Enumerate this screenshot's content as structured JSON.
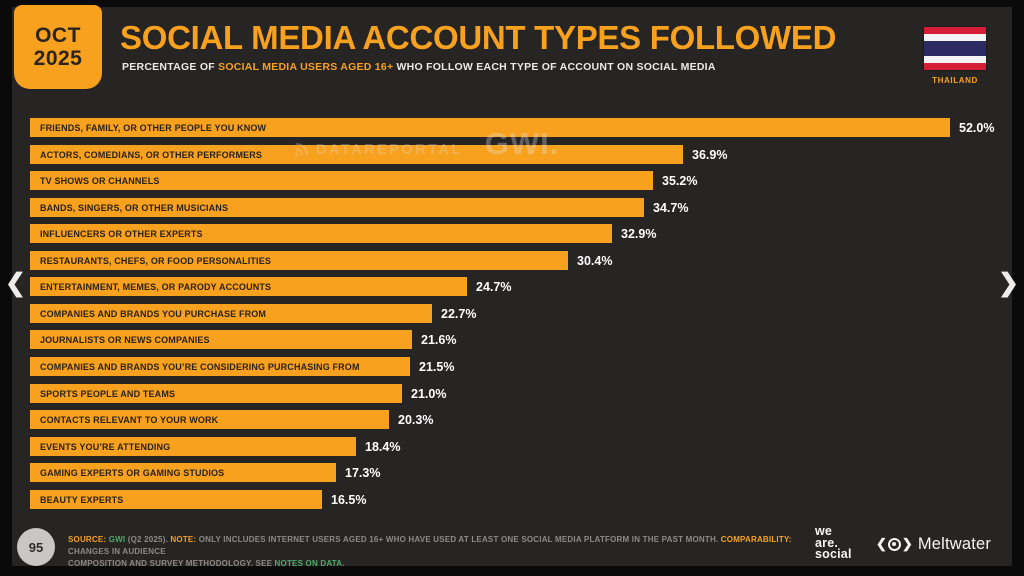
{
  "header": {
    "date_line1": "OCT",
    "date_line2": "2025",
    "title": "SOCIAL MEDIA ACCOUNT TYPES FOLLOWED",
    "subtitle_prefix": "PERCENTAGE OF ",
    "subtitle_highlight": "SOCIAL MEDIA USERS AGED 16+",
    "subtitle_suffix": " WHO FOLLOW EACH TYPE OF ACCOUNT ON SOCIAL MEDIA",
    "country": "THAILAND"
  },
  "watermark": {
    "brand1": "DATAREPORTAL",
    "brand2": "GWI."
  },
  "nav": {
    "prev": "❮",
    "next": "❯"
  },
  "chart_data": {
    "type": "bar",
    "orientation": "horizontal",
    "title": "SOCIAL MEDIA ACCOUNT TYPES FOLLOWED",
    "xlabel": "",
    "ylabel": "",
    "xlim": [
      0,
      56
    ],
    "grid": false,
    "bar_color": "#F7A11E",
    "categories": [
      "FRIENDS, FAMILY, OR OTHER PEOPLE YOU KNOW",
      "ACTORS, COMEDIANS, OR OTHER PERFORMERS",
      "TV SHOWS OR CHANNELS",
      "BANDS, SINGERS, OR OTHER MUSICIANS",
      "INFLUENCERS OR OTHER EXPERTS",
      "RESTAURANTS, CHEFS, OR FOOD PERSONALITIES",
      "ENTERTAINMENT, MEMES, OR PARODY ACCOUNTS",
      "COMPANIES AND BRANDS YOU PURCHASE FROM",
      "JOURNALISTS OR NEWS COMPANIES",
      "COMPANIES AND BRANDS YOU’RE CONSIDERING PURCHASING FROM",
      "SPORTS PEOPLE AND TEAMS",
      "CONTACTS RELEVANT TO YOUR WORK",
      "EVENTS YOU’RE ATTENDING",
      "GAMING EXPERTS OR GAMING STUDIOS",
      "BEAUTY EXPERTS"
    ],
    "values": [
      52.0,
      36.9,
      35.2,
      34.7,
      32.9,
      30.4,
      24.7,
      22.7,
      21.6,
      21.5,
      21.0,
      20.3,
      18.4,
      17.3,
      16.5
    ],
    "value_labels": [
      "52.0%",
      "36.9%",
      "35.2%",
      "34.7%",
      "32.9%",
      "30.4%",
      "24.7%",
      "22.7%",
      "21.6%",
      "21.5%",
      "21.0%",
      "20.3%",
      "18.4%",
      "17.3%",
      "16.5%"
    ]
  },
  "footer": {
    "page_number": "95",
    "line1": {
      "source_label": "SOURCE:",
      "source_link": " GWI",
      "source_tail": " (Q2 2025). ",
      "note_label": "NOTE:",
      "note_text": " ONLY INCLUDES INTERNET USERS AGED 16+ WHO HAVE USED AT LEAST ONE SOCIAL MEDIA PLATFORM IN THE PAST MONTH. ",
      "comparability_label": "COMPARABILITY:",
      "comparability_tail": " CHANGES IN AUDIENCE"
    },
    "line2": {
      "head": "COMPOSITION AND SURVEY METHODOLOGY. SEE ",
      "link": "NOTES ON DATA",
      "tail": "."
    },
    "logo_we_are_social": [
      "we",
      "are.",
      "social"
    ],
    "logo_meltwater": "Meltwater"
  },
  "colors": {
    "accent": "#F7A11E",
    "background": "#272424",
    "frame": "#0B0A0A",
    "bar_text": "#2A2118",
    "value_text": "#FFFFFF",
    "link_green": "#52A96A",
    "flag_red": "#D31E35",
    "flag_blue": "#2B2A63"
  }
}
